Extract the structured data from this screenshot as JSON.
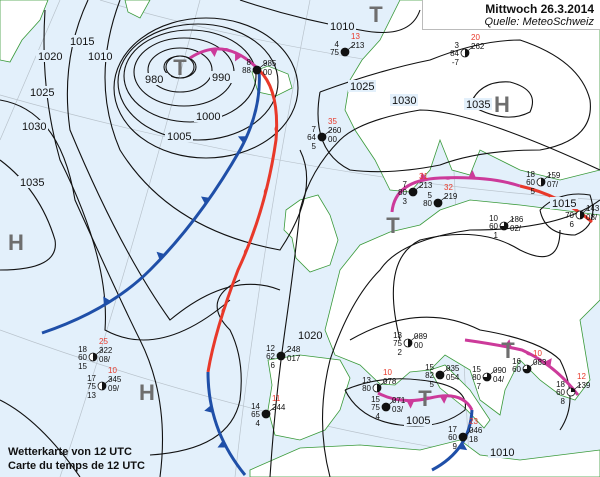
{
  "header": {
    "date": "Mittwoch 26.3.2014",
    "source": "Quelle: MeteoSchweiz"
  },
  "caption": {
    "line1": "Wetterkarte von 12 UTC",
    "line2": "Carte du temps de 12 UTC"
  },
  "colors": {
    "sea": "#e3f0fb",
    "land": "#ffffff",
    "coast": "#3a9a3a",
    "isobar": "#111111",
    "cold_front": "#1f4fa8",
    "warm_front": "#e8392a",
    "occlusion": "#cc3a9a",
    "red_value": "#e8392a"
  },
  "isobar_labels": [
    "1015",
    "1020",
    "1010",
    "1025",
    "1030",
    "1035",
    "980",
    "990",
    "1000",
    "1005",
    "1010",
    "1025",
    "1030",
    "1035",
    "1015",
    "1020",
    "1005",
    "1010"
  ],
  "pressure_centers": [
    "T",
    "T",
    "H",
    "H",
    "H",
    "T",
    "T",
    "T"
  ],
  "stations": [
    {
      "tl": "18",
      "l": "60",
      "bl": "15",
      "red": "25",
      "r": "322",
      "br": "08/",
      "cover": 0.5
    },
    {
      "tl": "17",
      "l": "75",
      "bl": "13",
      "red": "10",
      "r": "345",
      "br": "09/",
      "cover": 0.5
    },
    {
      "tl": "12",
      "l": "62",
      "bl": "6",
      "red": "",
      "r": "248",
      "br": "017",
      "cover": 1
    },
    {
      "tl": "14",
      "l": "65",
      "bl": "4",
      "red": "11",
      "r": "244",
      "br": "",
      "cover": 1
    },
    {
      "tl": "8",
      "l": "88",
      "bl": "",
      "red": "",
      "r": "985",
      "br": "00",
      "cover": 1
    },
    {
      "tl": "4",
      "l": "75",
      "bl": "",
      "red": "13",
      "r": "213",
      "br": "",
      "cover": 1
    },
    {
      "tl": "7",
      "l": "64",
      "bl": "5",
      "red": "35",
      "r": "260",
      "br": "00",
      "cover": 1
    },
    {
      "tl": "7",
      "l": "80",
      "bl": "3",
      "red": "31",
      "r": "213",
      "br": "",
      "cover": 1
    },
    {
      "tl": "5",
      "l": "80",
      "bl": "",
      "red": "32",
      "r": "219",
      "br": "",
      "cover": 1
    },
    {
      "tl": "18",
      "l": "60",
      "bl": "5",
      "red": "",
      "r": "159",
      "br": "07/",
      "cover": 0.5
    },
    {
      "tl": "",
      "l": "70",
      "bl": "6",
      "red": "",
      "r": "143",
      "br": "08/",
      "cover": 0.5
    },
    {
      "tl": "10",
      "l": "60",
      "bl": "1",
      "red": "",
      "r": "186",
      "br": "02/",
      "cover": 0.75
    },
    {
      "tl": "15",
      "l": "82",
      "bl": "5",
      "red": "",
      "r": "035",
      "br": "054",
      "cover": 1
    },
    {
      "tl": "17",
      "l": "60",
      "bl": "9",
      "red": "23",
      "r": "046",
      "br": "18",
      "cover": 1
    },
    {
      "tl": "13",
      "l": "80",
      "bl": "",
      "red": "10",
      "r": "078",
      "br": "",
      "cover": 0.5
    },
    {
      "tl": "15",
      "l": "75",
      "bl": "4",
      "red": "",
      "r": "071",
      "br": "03/",
      "cover": 1
    },
    {
      "tl": "15",
      "l": "80",
      "bl": "7",
      "red": "",
      "r": "090",
      "br": "04/",
      "cover": 0.75
    },
    {
      "tl": "16",
      "l": "60",
      "bl": "",
      "red": "10",
      "r": "083",
      "br": "",
      "cover": 0.75
    },
    {
      "tl": "18",
      "l": "60",
      "bl": "8",
      "red": "12",
      "r": "139",
      "br": "",
      "cover": 0.25
    },
    {
      "tl": "13",
      "l": "75",
      "bl": "2",
      "red": "",
      "r": "089",
      "br": "00",
      "cover": 0.5
    },
    {
      "tl": "3",
      "l": "84",
      "bl": "-7",
      "red": "20",
      "r": "262",
      "br": "",
      "cover": 0.5
    }
  ]
}
